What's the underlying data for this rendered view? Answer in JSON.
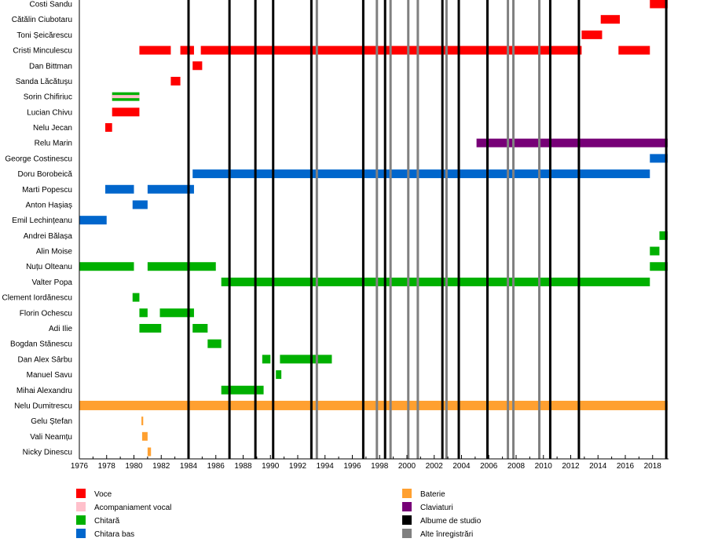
{
  "chart_data": {
    "type": "timeline",
    "title": "",
    "xlabel": "",
    "ylabel": "",
    "xlim": [
      1976,
      2019.1
    ],
    "x_ticks": [
      "1976",
      "1978",
      "1980",
      "1982",
      "1984",
      "1986",
      "1988",
      "1990",
      "1992",
      "1994",
      "1996",
      "1998",
      "2000",
      "2002",
      "2004",
      "2006",
      "2008",
      "2010",
      "2012",
      "2014",
      "2016",
      "2018"
    ],
    "roles": {
      "voce": {
        "label": "Voce",
        "color": "#ff0000"
      },
      "acomp": {
        "label": "Acompaniament vocal",
        "color": "#ffc0cb"
      },
      "chitara": {
        "label": "Chitară",
        "color": "#00b000"
      },
      "bas": {
        "label": "Chitara bas",
        "color": "#0066cc"
      },
      "baterie": {
        "label": "Baterie",
        "color": "#ffa030"
      },
      "claviaturi": {
        "label": "Claviaturi",
        "color": "#770077"
      },
      "albume": {
        "label": "Albume de studio",
        "color": "#000000"
      },
      "alte": {
        "label": "Alte înregistrări",
        "color": "#808080"
      }
    },
    "legend_left": [
      "voce",
      "acomp",
      "chitara",
      "bas"
    ],
    "legend_right": [
      "baterie",
      "claviaturi",
      "albume",
      "alte"
    ],
    "studio_albums": [
      1984.0,
      1987.0,
      1988.9,
      1990.2,
      1993.0,
      1996.8,
      1998.4,
      2002.6,
      2003.8,
      2005.9,
      2010.5,
      2012.6,
      2019.0
    ],
    "other_recordings": [
      1993.4,
      1997.8,
      1998.8,
      2000.1,
      2000.8,
      2002.9,
      2007.4,
      2007.8,
      2009.7
    ],
    "members": [
      {
        "name": "Costi Sandu",
        "periods": [
          {
            "role": "voce",
            "start": 2017.8,
            "end": 2019.1
          }
        ]
      },
      {
        "name": "Cătălin Ciubotaru",
        "periods": [
          {
            "role": "voce",
            "start": 2014.2,
            "end": 2015.6
          }
        ]
      },
      {
        "name": "Toni Șeicărescu",
        "periods": [
          {
            "role": "voce",
            "start": 2012.8,
            "end": 2014.3
          }
        ]
      },
      {
        "name": "Cristi Minculescu",
        "periods": [
          {
            "role": "voce",
            "start": 1980.4,
            "end": 1982.7
          },
          {
            "role": "voce",
            "start": 1983.4,
            "end": 1984.4
          },
          {
            "role": "voce",
            "start": 1984.9,
            "end": 2012.8
          },
          {
            "role": "voce",
            "start": 2015.5,
            "end": 2017.8
          }
        ]
      },
      {
        "name": "Dan Bittman",
        "periods": [
          {
            "role": "voce",
            "start": 1984.3,
            "end": 1985.0
          }
        ]
      },
      {
        "name": "Sanda Lăcătușu",
        "periods": [
          {
            "role": "voce",
            "start": 1982.7,
            "end": 1983.4
          }
        ]
      },
      {
        "name": "Sorin Chifiriuc",
        "periods": [
          {
            "role": "chitara",
            "start": 1978.4,
            "end": 1980.4,
            "secondary": "acomp"
          }
        ]
      },
      {
        "name": "Lucian Chivu",
        "periods": [
          {
            "role": "voce",
            "start": 1978.4,
            "end": 1980.4
          }
        ]
      },
      {
        "name": "Nelu Jecan",
        "periods": [
          {
            "role": "voce",
            "start": 1977.9,
            "end": 1978.4
          }
        ]
      },
      {
        "name": "Relu Marin",
        "periods": [
          {
            "role": "claviaturi",
            "start": 2005.1,
            "end": 2019.1
          }
        ]
      },
      {
        "name": "George Costinescu",
        "periods": [
          {
            "role": "bas",
            "start": 2017.8,
            "end": 2019.1
          }
        ]
      },
      {
        "name": "Doru Borobeică",
        "periods": [
          {
            "role": "bas",
            "start": 1984.3,
            "end": 2017.8
          }
        ]
      },
      {
        "name": "Marti Popescu",
        "periods": [
          {
            "role": "bas",
            "start": 1977.9,
            "end": 1980.0
          },
          {
            "role": "bas",
            "start": 1981.0,
            "end": 1984.4
          }
        ]
      },
      {
        "name": "Anton Hașiaș",
        "periods": [
          {
            "role": "bas",
            "start": 1979.9,
            "end": 1981.0
          }
        ]
      },
      {
        "name": "Emil Lechințeanu",
        "periods": [
          {
            "role": "bas",
            "start": 1976.0,
            "end": 1978.0
          }
        ]
      },
      {
        "name": "Andrei Bălașa",
        "periods": [
          {
            "role": "chitara",
            "start": 2018.5,
            "end": 2019.1
          }
        ]
      },
      {
        "name": "Alin Moise",
        "periods": [
          {
            "role": "chitara",
            "start": 2017.8,
            "end": 2018.5
          }
        ]
      },
      {
        "name": "Nuțu Olteanu",
        "periods": [
          {
            "role": "chitara",
            "start": 1976.0,
            "end": 1980.0
          },
          {
            "role": "chitara",
            "start": 1981.0,
            "end": 1986.0
          },
          {
            "role": "chitara",
            "start": 2017.8,
            "end": 2019.1
          }
        ]
      },
      {
        "name": "Valter Popa",
        "periods": [
          {
            "role": "chitara",
            "start": 1986.4,
            "end": 2017.8
          }
        ]
      },
      {
        "name": "Clement Iordănescu",
        "periods": [
          {
            "role": "chitara",
            "start": 1979.9,
            "end": 1980.4
          }
        ]
      },
      {
        "name": "Florin Ochescu",
        "periods": [
          {
            "role": "chitara",
            "start": 1980.4,
            "end": 1981.0
          },
          {
            "role": "chitara",
            "start": 1981.9,
            "end": 1984.4
          }
        ]
      },
      {
        "name": "Adi Ilie",
        "periods": [
          {
            "role": "chitara",
            "start": 1980.4,
            "end": 1982.0
          },
          {
            "role": "chitara",
            "start": 1984.3,
            "end": 1985.4
          }
        ]
      },
      {
        "name": "Bogdan Stănescu",
        "periods": [
          {
            "role": "chitara",
            "start": 1985.4,
            "end": 1986.4
          }
        ]
      },
      {
        "name": "Dan Alex Sârbu",
        "periods": [
          {
            "role": "chitara",
            "start": 1989.4,
            "end": 1990.0
          },
          {
            "role": "chitara",
            "start": 1990.7,
            "end": 1994.5
          }
        ]
      },
      {
        "name": "Manuel Savu",
        "periods": [
          {
            "role": "chitara",
            "start": 1990.4,
            "end": 1990.8
          }
        ]
      },
      {
        "name": "Mihai Alexandru",
        "periods": [
          {
            "role": "chitara",
            "start": 1986.4,
            "end": 1989.5
          }
        ]
      },
      {
        "name": "Nelu Dumitrescu",
        "periods": [
          {
            "role": "baterie",
            "start": 1976.0,
            "end": 2019.1
          }
        ]
      },
      {
        "name": "Gelu Ștefan",
        "periods": [
          {
            "role": "baterie",
            "start": 1980.55,
            "end": 1980.68
          }
        ]
      },
      {
        "name": "Vali Neamțu",
        "periods": [
          {
            "role": "baterie",
            "start": 1980.6,
            "end": 1981.0
          }
        ]
      },
      {
        "name": "Nicky Dinescu",
        "periods": [
          {
            "role": "baterie",
            "start": 1981.0,
            "end": 1981.25
          }
        ]
      }
    ]
  }
}
